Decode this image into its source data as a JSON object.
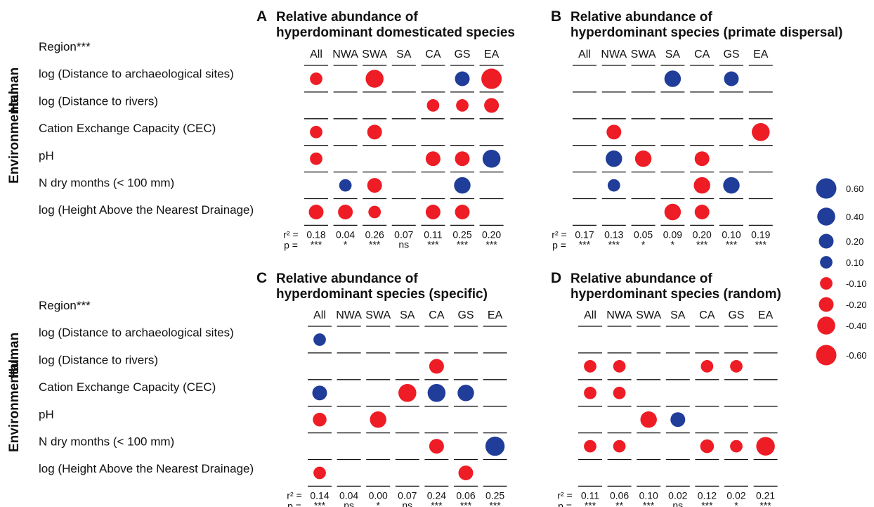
{
  "colors": {
    "positive": "#1f3d99",
    "negative": "#ee1c25"
  },
  "row_labels": [
    "Region***",
    "log (Distance to archaeological sites)",
    "log (Distance to rivers)",
    "Cation Exchange Capacity (CEC)",
    "pH",
    "N dry months (< 100 mm)",
    "log (Height Above the Nearest Drainage)"
  ],
  "group_labels": {
    "human": "Human",
    "environmental": "Environmental"
  },
  "stat_labels": {
    "r2": "r² =",
    "p": "p ="
  },
  "legend": {
    "values": [
      0.6,
      0.4,
      0.2,
      0.1,
      -0.1,
      -0.2,
      -0.4,
      -0.6
    ],
    "labels": [
      "0.60",
      "0.40",
      "0.20",
      "0.10",
      "-0.10",
      "-0.20",
      "-0.40",
      "-0.60"
    ]
  },
  "chart_data": [
    {
      "type": "scatter",
      "letter": "A",
      "title": [
        "Relative abundance of",
        "hyperdominant domesticated species"
      ],
      "columns": [
        "All",
        "NWA",
        "SWA",
        "SA",
        "CA",
        "GS",
        "EA"
      ],
      "rows": [
        [
          -0.1,
          null,
          -0.4,
          null,
          null,
          0.2,
          -0.6
        ],
        [
          null,
          null,
          null,
          null,
          -0.1,
          -0.1,
          -0.2
        ],
        [
          -0.1,
          null,
          -0.2,
          null,
          null,
          null,
          null
        ],
        [
          -0.1,
          null,
          null,
          null,
          -0.2,
          -0.2,
          0.4
        ],
        [
          null,
          0.1,
          -0.2,
          null,
          null,
          0.3,
          null
        ],
        [
          -0.2,
          -0.2,
          -0.1,
          null,
          -0.2,
          -0.2,
          null
        ]
      ],
      "r2": [
        "0.18",
        "0.04",
        "0.26",
        "0.07",
        "0.11",
        "0.25",
        "0.20"
      ],
      "p": [
        "***",
        "*",
        "***",
        "ns",
        "***",
        "***",
        "***"
      ]
    },
    {
      "type": "scatter",
      "letter": "B",
      "title": [
        "Relative abundance of",
        "hyperdominant species (primate dispersal)"
      ],
      "columns": [
        "All",
        "NWA",
        "SWA",
        "SA",
        "CA",
        "GS",
        "EA"
      ],
      "rows": [
        [
          null,
          null,
          null,
          0.3,
          null,
          0.2,
          null
        ],
        [
          null,
          null,
          null,
          null,
          null,
          null,
          null
        ],
        [
          null,
          -0.2,
          null,
          null,
          null,
          null,
          -0.4
        ],
        [
          null,
          0.3,
          -0.3,
          null,
          -0.2,
          null,
          null
        ],
        [
          null,
          0.1,
          null,
          null,
          -0.3,
          0.3,
          null
        ],
        [
          null,
          null,
          null,
          -0.3,
          -0.2,
          null,
          null
        ]
      ],
      "r2": [
        "0.17",
        "0.13",
        "0.05",
        "0.09",
        "0.20",
        "0.10",
        "0.19"
      ],
      "p": [
        "***",
        "***",
        "*",
        "*",
        "***",
        "***",
        "***"
      ]
    },
    {
      "type": "scatter",
      "letter": "C",
      "title": [
        "Relative abundance of",
        "hyperdominant species (specific)"
      ],
      "columns": [
        "All",
        "NWA",
        "SWA",
        "SA",
        "CA",
        "GS",
        "EA"
      ],
      "rows": [
        [
          0.1,
          null,
          null,
          null,
          null,
          null,
          null
        ],
        [
          null,
          null,
          null,
          null,
          -0.2,
          null,
          null
        ],
        [
          0.2,
          null,
          null,
          -0.4,
          0.4,
          0.3,
          null
        ],
        [
          -0.15,
          null,
          -0.3,
          null,
          null,
          null,
          null
        ],
        [
          null,
          null,
          null,
          null,
          -0.2,
          null,
          0.5
        ],
        [
          -0.1,
          null,
          null,
          null,
          null,
          -0.2,
          null
        ]
      ],
      "r2": [
        "0.14",
        "0.04",
        "0.00",
        "0.07",
        "0.24",
        "0.06",
        "0.25"
      ],
      "p": [
        "***",
        "ns",
        "*",
        "ns",
        "***",
        "***",
        "***"
      ]
    },
    {
      "type": "scatter",
      "letter": "D",
      "title": [
        "Relative abundance of",
        "hyperdominant species (random)"
      ],
      "columns": [
        "All",
        "NWA",
        "SWA",
        "SA",
        "CA",
        "GS",
        "EA"
      ],
      "rows": [
        [
          null,
          null,
          null,
          null,
          null,
          null,
          null
        ],
        [
          -0.1,
          -0.1,
          null,
          null,
          -0.1,
          -0.1,
          null
        ],
        [
          -0.1,
          -0.1,
          null,
          null,
          null,
          null,
          null
        ],
        [
          null,
          null,
          -0.3,
          0.2,
          null,
          null,
          null
        ],
        [
          -0.1,
          -0.1,
          null,
          null,
          -0.15,
          -0.1,
          -0.45
        ],
        [
          null,
          null,
          null,
          null,
          null,
          null,
          null
        ]
      ],
      "r2": [
        "0.11",
        "0.06",
        "0.10",
        "0.02",
        "0.12",
        "0.02",
        "0.21"
      ],
      "p": [
        "***",
        "**",
        "***",
        "ns",
        "***",
        "*",
        "***"
      ]
    }
  ]
}
